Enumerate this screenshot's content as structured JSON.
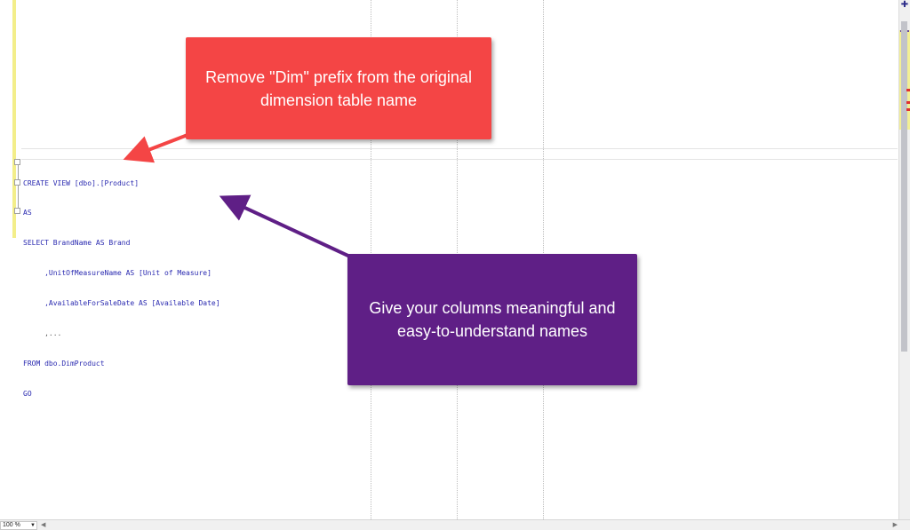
{
  "editor": {
    "code_lines": [
      "CREATE VIEW [dbo].[Product]",
      "AS",
      "SELECT BrandName AS Brand",
      "     ,UnitOfMeasureName AS [Unit of Measure]",
      "     ,AvailableForSaleDate AS [Available Date]",
      "     ,...",
      "FROM dbo.DimProduct",
      "GO"
    ],
    "zoom": "100 %"
  },
  "callouts": {
    "red": "Remove \"Dim\" prefix from the original dimension table name",
    "purple": "Give your columns meaningful and easy-to-understand names"
  },
  "colors": {
    "red_callout": "#f44545",
    "purple_callout": "#5f1f86",
    "change_bar": "#f3ee8a"
  }
}
